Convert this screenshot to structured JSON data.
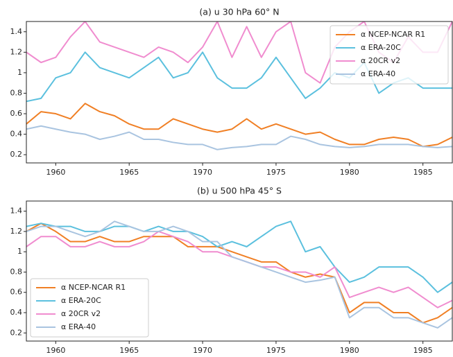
{
  "chart_data": [
    {
      "type": "line",
      "title": "(a) u 30 hPa 60° N",
      "x": [
        1958,
        1959,
        1960,
        1961,
        1962,
        1963,
        1964,
        1965,
        1966,
        1967,
        1968,
        1969,
        1970,
        1971,
        1972,
        1973,
        1974,
        1975,
        1976,
        1977,
        1978,
        1979,
        1980,
        1981,
        1982,
        1983,
        1984,
        1985,
        1986,
        1987
      ],
      "xlim": [
        1958,
        1987
      ],
      "xticks": [
        1960,
        1965,
        1970,
        1975,
        1980,
        1985
      ],
      "ylim": [
        0.12,
        1.5
      ],
      "yticks": [
        0.2,
        0.4,
        0.6,
        0.8,
        1,
        1.2,
        1.4
      ],
      "legend": "upper right",
      "series": [
        {
          "name": "α NCEP-NCAR R1",
          "color": "#f07f24",
          "values": [
            0.5,
            0.62,
            0.6,
            0.55,
            0.7,
            0.62,
            0.58,
            0.5,
            0.45,
            0.45,
            0.55,
            0.5,
            0.45,
            0.42,
            0.45,
            0.55,
            0.45,
            0.5,
            0.45,
            0.4,
            0.42,
            0.35,
            0.3,
            0.3,
            0.35,
            0.37,
            0.35,
            0.28,
            0.3,
            0.37
          ]
        },
        {
          "name": "α ERA-20C",
          "color": "#5bc0de",
          "values": [
            0.72,
            0.75,
            0.95,
            1.0,
            1.2,
            1.05,
            1.0,
            0.95,
            1.05,
            1.15,
            0.95,
            1.0,
            1.2,
            0.95,
            0.85,
            0.85,
            0.95,
            1.15,
            0.95,
            0.75,
            0.85,
            1.0,
            0.95,
            1.1,
            0.8,
            0.9,
            0.95,
            0.85,
            0.85,
            0.85
          ]
        },
        {
          "name": "α 20CR v2",
          "color": "#f08ccf",
          "values": [
            1.2,
            1.1,
            1.15,
            1.35,
            1.5,
            1.3,
            1.25,
            1.2,
            1.15,
            1.25,
            1.2,
            1.1,
            1.25,
            1.5,
            1.15,
            1.45,
            1.15,
            1.4,
            1.5,
            1.0,
            0.9,
            1.25,
            1.4,
            1.5,
            1.2,
            1.1,
            1.35,
            1.2,
            1.2,
            1.5
          ]
        },
        {
          "name": "α ERA-40",
          "color": "#a9c4e0",
          "values": [
            0.45,
            0.48,
            0.45,
            0.42,
            0.4,
            0.35,
            0.38,
            0.42,
            0.35,
            0.35,
            0.32,
            0.3,
            0.3,
            0.25,
            0.27,
            0.28,
            0.3,
            0.3,
            0.38,
            0.35,
            0.3,
            0.28,
            0.27,
            0.28,
            0.3,
            0.3,
            0.3,
            0.28,
            0.27,
            0.28
          ]
        }
      ]
    },
    {
      "type": "line",
      "title": "(b) u 500 hPa 45° S",
      "x": [
        1958,
        1959,
        1960,
        1961,
        1962,
        1963,
        1964,
        1965,
        1966,
        1967,
        1968,
        1969,
        1970,
        1971,
        1972,
        1973,
        1974,
        1975,
        1976,
        1977,
        1978,
        1979,
        1980,
        1981,
        1982,
        1983,
        1984,
        1985,
        1986,
        1987
      ],
      "xlim": [
        1958,
        1987
      ],
      "xticks": [
        1960,
        1965,
        1970,
        1975,
        1980,
        1985
      ],
      "ylim": [
        0.12,
        1.5
      ],
      "yticks": [
        0.2,
        0.4,
        0.6,
        0.8,
        1,
        1.2,
        1.4
      ],
      "legend": "lower left",
      "series": [
        {
          "name": "α NCEP-NCAR R1",
          "color": "#f07f24",
          "values": [
            1.2,
            1.28,
            1.2,
            1.1,
            1.1,
            1.15,
            1.1,
            1.1,
            1.15,
            1.15,
            1.15,
            1.05,
            1.05,
            1.05,
            1.0,
            0.95,
            0.9,
            0.9,
            0.8,
            0.75,
            0.78,
            0.75,
            0.4,
            0.5,
            0.5,
            0.4,
            0.4,
            0.3,
            0.35,
            0.45
          ]
        },
        {
          "name": "α ERA-20C",
          "color": "#5bc0de",
          "values": [
            1.25,
            1.28,
            1.25,
            1.25,
            1.2,
            1.2,
            1.25,
            1.25,
            1.2,
            1.25,
            1.2,
            1.2,
            1.15,
            1.05,
            1.1,
            1.05,
            1.15,
            1.25,
            1.3,
            1.0,
            1.05,
            0.85,
            0.7,
            0.75,
            0.85,
            0.85,
            0.85,
            0.75,
            0.6,
            0.7
          ]
        },
        {
          "name": "α 20CR v2",
          "color": "#f08ccf",
          "values": [
            1.05,
            1.15,
            1.15,
            1.05,
            1.05,
            1.1,
            1.05,
            1.05,
            1.1,
            1.2,
            1.15,
            1.1,
            1.0,
            1.0,
            0.95,
            0.9,
            0.85,
            0.85,
            0.8,
            0.8,
            0.75,
            0.85,
            0.55,
            0.6,
            0.65,
            0.6,
            0.65,
            0.55,
            0.45,
            0.52
          ]
        },
        {
          "name": "α ERA-40",
          "color": "#a9c4e0",
          "values": [
            1.2,
            1.25,
            1.25,
            1.2,
            1.15,
            1.2,
            1.3,
            1.25,
            1.2,
            1.2,
            1.25,
            1.2,
            1.1,
            1.1,
            0.95,
            0.9,
            0.85,
            0.8,
            0.75,
            0.7,
            0.72,
            0.75,
            0.35,
            0.45,
            0.45,
            0.35,
            0.35,
            0.3,
            0.25,
            0.35
          ]
        }
      ]
    }
  ]
}
